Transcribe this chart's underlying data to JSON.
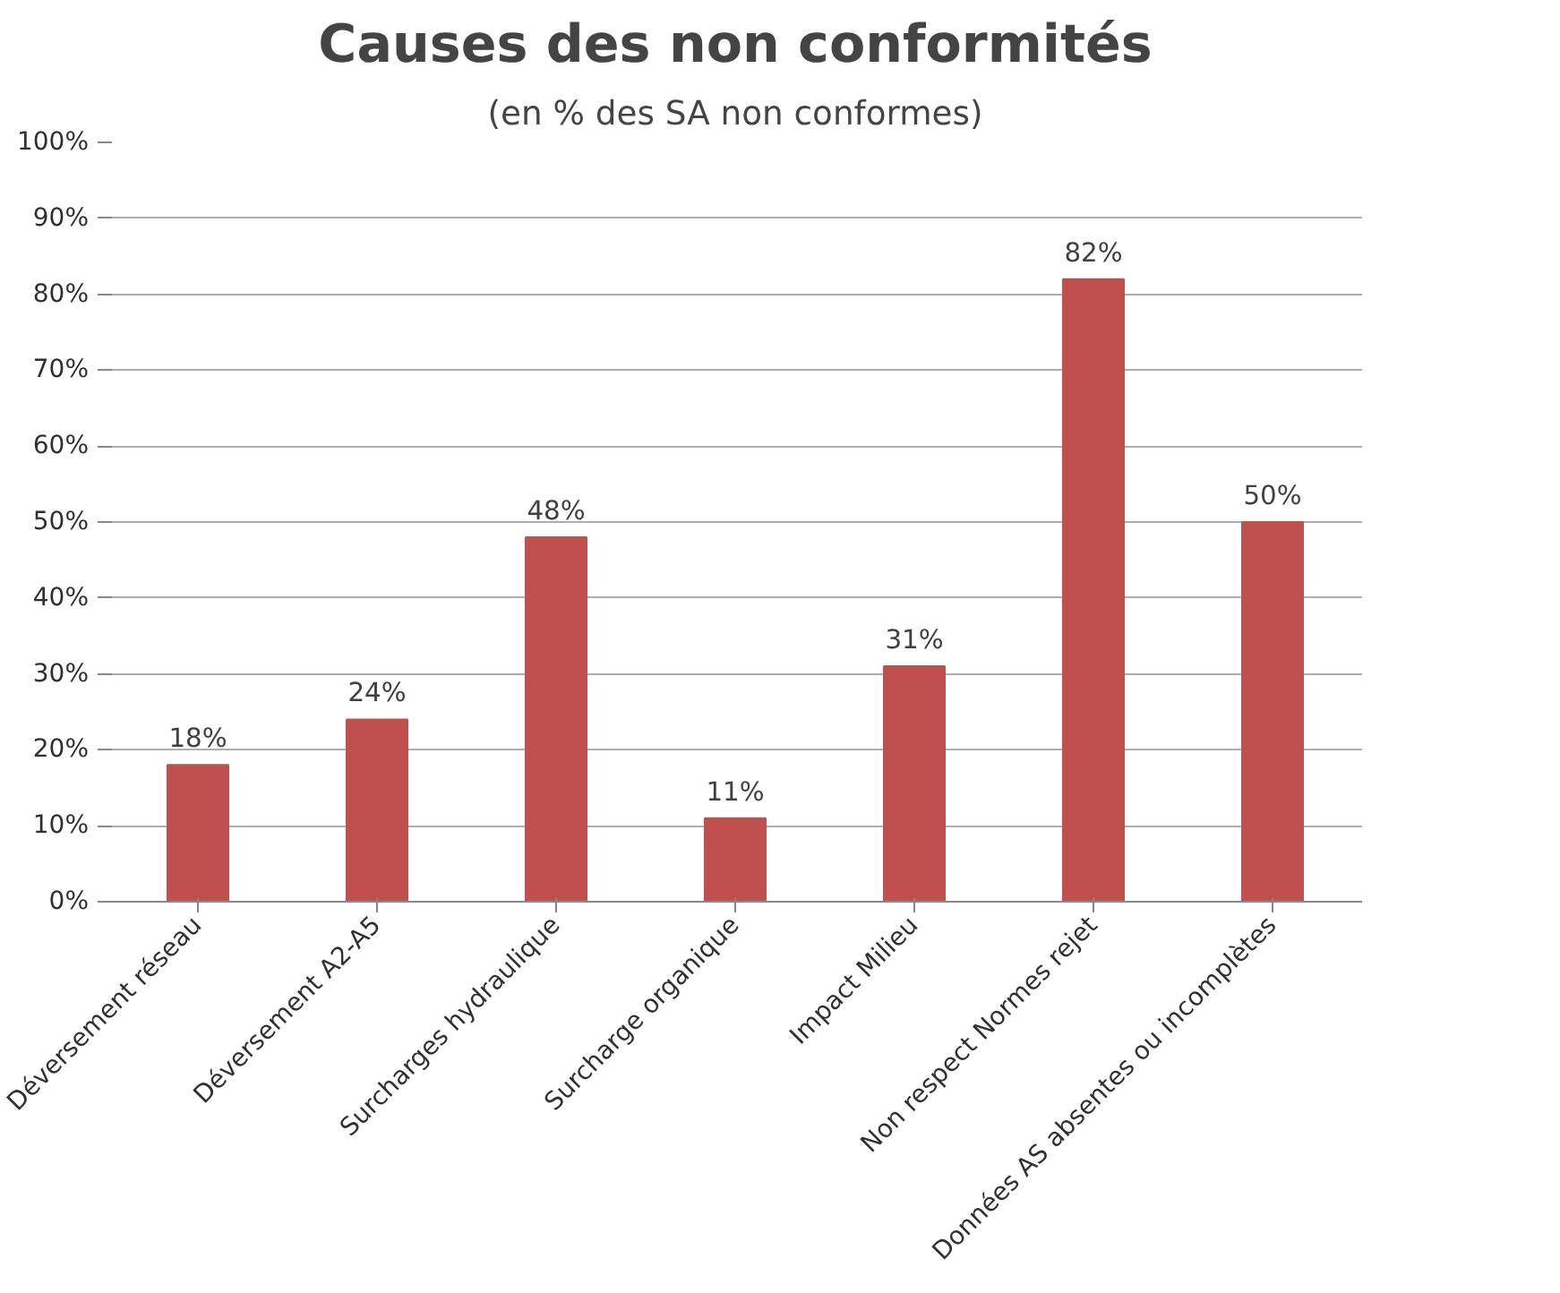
{
  "chart_data": {
    "type": "bar",
    "title": "Causes des non conformités",
    "subtitle": "(en % des SA non conformes)",
    "categories": [
      "Déversement réseau",
      "Déversement A2-A5",
      "Surcharges hydraulique",
      "Surcharge organique",
      "Impact Milieu",
      "Non respect Normes rejet",
      "Données AS absentes ou incomplètes"
    ],
    "values": [
      18,
      24,
      48,
      11,
      31,
      82,
      50
    ],
    "value_labels": [
      "18%",
      "24%",
      "48%",
      "11%",
      "31%",
      "82%",
      "50%"
    ],
    "color": "#c0504d",
    "ylim": [
      0,
      100
    ],
    "yticks": [
      {
        "value": 0,
        "label": "0%"
      },
      {
        "value": 10,
        "label": "10%"
      },
      {
        "value": 20,
        "label": "20%"
      },
      {
        "value": 30,
        "label": "30%"
      },
      {
        "value": 40,
        "label": "40%"
      },
      {
        "value": 50,
        "label": "50%"
      },
      {
        "value": 60,
        "label": "60%"
      },
      {
        "value": 70,
        "label": "70%"
      },
      {
        "value": 80,
        "label": "80%"
      },
      {
        "value": 90,
        "label": "90%"
      },
      {
        "value": 100,
        "label": "100%"
      }
    ],
    "grid": "y"
  }
}
